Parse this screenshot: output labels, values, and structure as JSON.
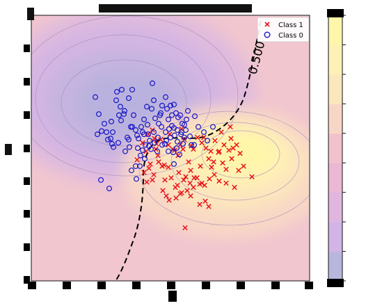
{
  "chart_data": {
    "type": "scatter",
    "title": "",
    "xlabel": "",
    "ylabel": "",
    "xlim": [
      -1.5,
      2.5
    ],
    "ylim": [
      -1.0,
      1.5
    ],
    "grid": false,
    "legend_position": "top-right",
    "legend": [
      {
        "name": "Class 1",
        "marker": "x",
        "color": "#e8141b"
      },
      {
        "name": "Class 0",
        "marker": "o",
        "color": "#1414c8"
      }
    ],
    "decision_boundary_label": "0.500",
    "colorbar_colors": [
      "#b9b6de",
      "#d2b4e6",
      "#e0b6e0",
      "#eab8d4",
      "#f1c2cc",
      "#f8d6c6",
      "#fce6bc",
      "#fff1b5",
      "#fff6aa"
    ],
    "series": [
      {
        "name": "Class 1",
        "points": [
          [
            0.02,
            0.14
          ],
          [
            0.15,
            0.22
          ],
          [
            0.1,
            0.3
          ],
          [
            0.18,
            0.38
          ],
          [
            0.24,
            0.42
          ],
          [
            0.27,
            0.34
          ],
          [
            0.3,
            0.29
          ],
          [
            0.36,
            0.33
          ],
          [
            0.29,
            0.24
          ],
          [
            0.21,
            0.1
          ],
          [
            0.33,
            0.12
          ],
          [
            0.41,
            0.09
          ],
          [
            0.47,
            0.07
          ],
          [
            0.53,
            0.24
          ],
          [
            0.56,
            0.23
          ],
          [
            0.61,
            0.18
          ],
          [
            0.49,
            0.38
          ],
          [
            0.64,
            0.28
          ],
          [
            0.7,
            0.33
          ],
          [
            0.8,
            0.27
          ],
          [
            0.83,
            0.24
          ],
          [
            0.89,
            0.35
          ],
          [
            0.95,
            0.3
          ],
          [
            1.01,
            0.25
          ],
          [
            1.08,
            0.22
          ],
          [
            1.14,
            0.32
          ],
          [
            1.19,
            0.21
          ],
          [
            1.23,
            0.4
          ],
          [
            1.27,
            0.28
          ],
          [
            1.34,
            0.23
          ],
          [
            1.36,
            0.45
          ],
          [
            1.38,
            0.15
          ],
          [
            1.45,
            0.28
          ],
          [
            1.48,
            0.04
          ],
          [
            1.3,
            0.05
          ],
          [
            1.25,
            0.11
          ],
          [
            1.12,
            0.12
          ],
          [
            1.05,
            0.15
          ],
          [
            0.93,
            0.08
          ],
          [
            0.79,
            0.04
          ],
          [
            0.78,
            -0.08
          ],
          [
            0.69,
            -0.05
          ],
          [
            0.62,
            0.02
          ],
          [
            0.57,
            -0.12
          ],
          [
            0.51,
            -0.03
          ],
          [
            0.44,
            -0.2
          ],
          [
            0.39,
            -0.15
          ],
          [
            0.42,
            -0.05
          ],
          [
            0.38,
            0.08
          ],
          [
            0.32,
            0.18
          ],
          [
            0.72,
            -0.02
          ],
          [
            0.83,
            -0.12
          ],
          [
            0.88,
            -0.03
          ],
          [
            0.95,
            -0.08
          ],
          [
            0.99,
            -0.1
          ],
          [
            1.06,
            -0.04
          ],
          [
            1.13,
            0.0
          ],
          [
            1.2,
            -0.06
          ],
          [
            1.3,
            -0.08
          ],
          [
            1.42,
            -0.12
          ],
          [
            1.55,
            0.08
          ],
          [
            1.67,
            -0.02
          ],
          [
            1.4,
            0.25
          ],
          [
            0.98,
            0.35
          ],
          [
            0.66,
            0.43
          ],
          [
            0.74,
            -0.15
          ],
          [
            0.6,
            -0.1
          ],
          [
            0.64,
            -0.18
          ],
          [
            0.84,
            -0.03
          ],
          [
            0.92,
            -0.09
          ],
          [
            0.79,
            -0.2
          ],
          [
            0.92,
            -0.28
          ],
          [
            1.0,
            -0.25
          ],
          [
            1.05,
            -0.3
          ],
          [
            0.71,
            -0.5
          ],
          [
            0.66,
            -0.17
          ],
          [
            0.58,
            -0.22
          ],
          [
            0.48,
            -0.24
          ],
          [
            0.24,
            -0.05
          ],
          [
            0.16,
            -0.07
          ],
          [
            0.19,
            0.06
          ],
          [
            0.26,
            0.0
          ],
          [
            0.12,
            0.02
          ],
          [
            0.47,
            0.28
          ],
          [
            0.68,
            0.24
          ],
          [
            0.76,
            0.12
          ],
          [
            1.37,
            0.34
          ],
          [
            1.5,
            0.2
          ],
          [
            1.2,
            0.22
          ],
          [
            1.09,
            0.07
          ]
        ]
      },
      {
        "name": "Class 0",
        "points": [
          [
            -0.58,
            0.73
          ],
          [
            -0.53,
            0.57
          ],
          [
            -0.55,
            0.38
          ],
          [
            -0.45,
            0.48
          ],
          [
            -0.42,
            0.4
          ],
          [
            -0.4,
            0.33
          ],
          [
            -0.33,
            0.4
          ],
          [
            -0.35,
            0.5
          ],
          [
            -0.28,
            0.7
          ],
          [
            -0.27,
            0.78
          ],
          [
            -0.2,
            0.8
          ],
          [
            -0.16,
            0.6
          ],
          [
            -0.17,
            0.57
          ],
          [
            -0.1,
            0.72
          ],
          [
            -0.05,
            0.8
          ],
          [
            -0.03,
            0.56
          ],
          [
            -0.05,
            0.45
          ],
          [
            0.0,
            0.42
          ],
          [
            0.04,
            0.34
          ],
          [
            0.1,
            0.4
          ],
          [
            0.12,
            0.52
          ],
          [
            0.17,
            0.47
          ],
          [
            0.18,
            0.38
          ],
          [
            0.2,
            0.32
          ],
          [
            0.26,
            0.4
          ],
          [
            0.23,
            0.62
          ],
          [
            0.24,
            0.86
          ],
          [
            0.33,
            0.48
          ],
          [
            0.35,
            0.56
          ],
          [
            0.38,
            0.65
          ],
          [
            0.43,
            0.73
          ],
          [
            0.45,
            0.62
          ],
          [
            0.47,
            0.52
          ],
          [
            0.52,
            0.46
          ],
          [
            0.52,
            0.56
          ],
          [
            0.55,
            0.44
          ],
          [
            0.56,
            0.37
          ],
          [
            0.6,
            0.42
          ],
          [
            0.61,
            0.54
          ],
          [
            0.64,
            0.56
          ],
          [
            0.67,
            0.48
          ],
          [
            0.7,
            0.35
          ],
          [
            0.72,
            0.42
          ],
          [
            0.73,
            0.52
          ],
          [
            0.78,
            0.36
          ],
          [
            0.8,
            0.28
          ],
          [
            0.85,
            0.55
          ],
          [
            0.9,
            0.45
          ],
          [
            0.98,
            0.4
          ],
          [
            1.03,
            0.32
          ],
          [
            1.11,
            0.45
          ],
          [
            -0.49,
            0.41
          ],
          [
            -0.32,
            0.26
          ],
          [
            -0.25,
            0.3
          ],
          [
            -0.21,
            0.51
          ],
          [
            -0.12,
            0.35
          ],
          [
            0.03,
            0.25
          ],
          [
            0.08,
            0.45
          ],
          [
            0.14,
            0.28
          ],
          [
            0.27,
            0.3
          ],
          [
            0.32,
            0.35
          ],
          [
            0.42,
            0.29
          ],
          [
            0.48,
            0.43
          ],
          [
            0.5,
            0.65
          ],
          [
            0.55,
            0.66
          ],
          [
            0.6,
            0.31
          ],
          [
            0.65,
            0.38
          ],
          [
            0.68,
            0.29
          ],
          [
            0.7,
            0.47
          ],
          [
            0.75,
            0.6
          ],
          [
            0.59,
            0.25
          ],
          [
            0.43,
            0.4
          ],
          [
            0.37,
            0.45
          ],
          [
            0.28,
            0.53
          ],
          [
            0.19,
            0.27
          ],
          [
            0.1,
            0.23
          ],
          [
            0.07,
            0.18
          ],
          [
            0.0,
            0.08
          ],
          [
            0.06,
            0.08
          ],
          [
            -0.34,
            0.29
          ],
          [
            -0.36,
            0.34
          ],
          [
            -0.1,
            0.33
          ],
          [
            0.22,
            0.24
          ],
          [
            0.31,
            0.22
          ],
          [
            0.47,
            0.22
          ],
          [
            0.54,
            0.21
          ],
          [
            0.63,
            0.19
          ],
          [
            0.55,
            0.1
          ],
          [
            0.66,
            0.4
          ],
          [
            0.84,
            0.28
          ],
          [
            -0.09,
            0.26
          ],
          [
            0.13,
            0.15
          ],
          [
            0.02,
            0.37
          ],
          [
            -0.5,
            -0.05
          ],
          [
            -0.38,
            -0.13
          ],
          [
            -0.15,
            0.22
          ],
          [
            -0.06,
            0.04
          ],
          [
            0.01,
            -0.04
          ],
          [
            -0.22,
            0.64
          ],
          [
            -0.24,
            0.56
          ],
          [
            0.36,
            0.58
          ],
          [
            0.58,
            0.58
          ],
          [
            0.12,
            0.38
          ],
          [
            -0.07,
            0.45
          ],
          [
            0.5,
            0.35
          ],
          [
            0.44,
            0.32
          ],
          [
            0.38,
            0.28
          ],
          [
            0.16,
            0.64
          ],
          [
            0.26,
            0.7
          ]
        ]
      }
    ]
  }
}
